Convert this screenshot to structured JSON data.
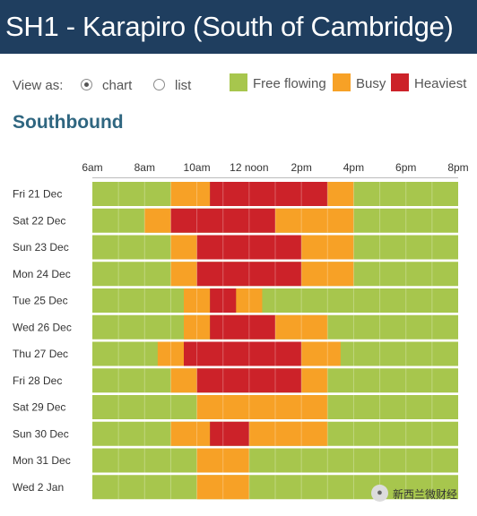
{
  "header": {
    "title": "SH1 - Karapiro (South of Cambridge)"
  },
  "view": {
    "label": "View as:",
    "options": [
      {
        "label": "chart",
        "selected": true
      },
      {
        "label": "list",
        "selected": false
      }
    ]
  },
  "legend": [
    {
      "label": "Free flowing",
      "color": "#a7c64d"
    },
    {
      "label": "Busy",
      "color": "#f7a126"
    },
    {
      "label": "Heaviest",
      "color": "#cc2229"
    }
  ],
  "section": {
    "title": "Southbound"
  },
  "watermark": {
    "text": "新西兰微财经",
    "icon": "wechat-icon"
  },
  "chart_data": {
    "type": "heatmap",
    "x_unit": "hour of day",
    "x_ticks": [
      {
        "hour": 6,
        "label": "6am"
      },
      {
        "hour": 8,
        "label": "8am"
      },
      {
        "hour": 10,
        "label": "10am"
      },
      {
        "hour": 12,
        "label": "12 noon"
      },
      {
        "hour": 14,
        "label": "2pm"
      },
      {
        "hour": 16,
        "label": "4pm"
      },
      {
        "hour": 18,
        "label": "6pm"
      },
      {
        "hour": 20,
        "label": "8pm"
      }
    ],
    "x_range": [
      6,
      20
    ],
    "levels": [
      "Free flowing",
      "Busy",
      "Heaviest"
    ],
    "rows": [
      {
        "label": "Fri 21 Dec",
        "busy": [
          [
            9,
            10.5
          ],
          [
            15,
            16
          ]
        ],
        "heaviest": [
          [
            10.5,
            15
          ]
        ]
      },
      {
        "label": "Sat 22 Dec",
        "busy": [
          [
            8,
            9
          ],
          [
            13,
            16
          ]
        ],
        "heaviest": [
          [
            9,
            13
          ]
        ]
      },
      {
        "label": "Sun 23 Dec",
        "busy": [
          [
            9,
            10
          ],
          [
            14,
            16
          ]
        ],
        "heaviest": [
          [
            10,
            14
          ]
        ]
      },
      {
        "label": "Mon 24 Dec",
        "busy": [
          [
            9,
            10
          ],
          [
            14,
            16
          ]
        ],
        "heaviest": [
          [
            10,
            14
          ]
        ]
      },
      {
        "label": "Tue 25 Dec",
        "busy": [
          [
            9.5,
            10.5
          ],
          [
            11.5,
            12.5
          ]
        ],
        "heaviest": [
          [
            10.5,
            11.5
          ]
        ]
      },
      {
        "label": "Wed 26 Dec",
        "busy": [
          [
            9.5,
            10.5
          ],
          [
            13,
            15
          ]
        ],
        "heaviest": [
          [
            10.5,
            13
          ]
        ]
      },
      {
        "label": "Thu 27 Dec",
        "busy": [
          [
            8.5,
            9.5
          ],
          [
            14,
            15.5
          ]
        ],
        "heaviest": [
          [
            9.5,
            14
          ]
        ]
      },
      {
        "label": "Fri 28 Dec",
        "busy": [
          [
            9,
            10
          ],
          [
            14,
            15
          ]
        ],
        "heaviest": [
          [
            10,
            14
          ]
        ]
      },
      {
        "label": "Sat 29 Dec",
        "busy": [
          [
            10,
            15
          ]
        ],
        "heaviest": []
      },
      {
        "label": "Sun 30 Dec",
        "busy": [
          [
            9,
            10.5
          ],
          [
            12,
            15
          ]
        ],
        "heaviest": [
          [
            10.5,
            12
          ]
        ]
      },
      {
        "label": "Mon 31 Dec",
        "busy": [
          [
            10,
            12
          ]
        ],
        "heaviest": []
      },
      {
        "label": "Wed 2 Jan",
        "busy": [
          [
            10,
            12
          ]
        ],
        "heaviest": []
      }
    ]
  }
}
